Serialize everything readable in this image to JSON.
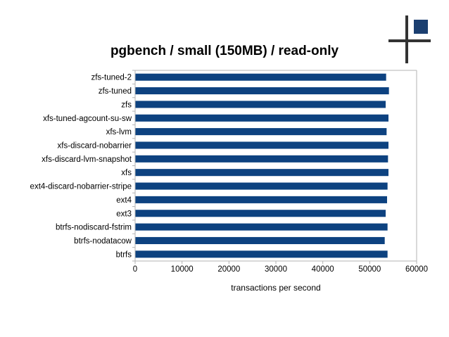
{
  "chart_data": {
    "type": "bar",
    "orientation": "horizontal",
    "title": "pgbench / small (150MB) / read-only",
    "xlabel": "transactions per second",
    "ylabel": "",
    "categories": [
      "zfs-tuned-2",
      "zfs-tuned",
      "zfs",
      "xfs-tuned-agcount-su-sw",
      "xfs-lvm",
      "xfs-discard-nobarrier",
      "xfs-discard-lvm-snapshot",
      "xfs",
      "ext4-discard-nobarrier-stripe",
      "ext4",
      "ext3",
      "btrfs-nodiscard-fstrim",
      "btrfs-nodatacow",
      "btrfs"
    ],
    "values": [
      53500,
      54100,
      53400,
      54000,
      53600,
      54000,
      53900,
      54000,
      53800,
      53700,
      53400,
      53800,
      53200,
      53800
    ],
    "xlim": [
      0,
      60000
    ],
    "xticks": [
      "0",
      "10000",
      "20000",
      "30000",
      "40000",
      "50000",
      "60000"
    ],
    "bar_color": "#0d4280",
    "grid": false,
    "legend": "none"
  },
  "logo": {
    "name": "cross-logo",
    "square_color": "#1b3f70",
    "line_color": "#333333"
  }
}
